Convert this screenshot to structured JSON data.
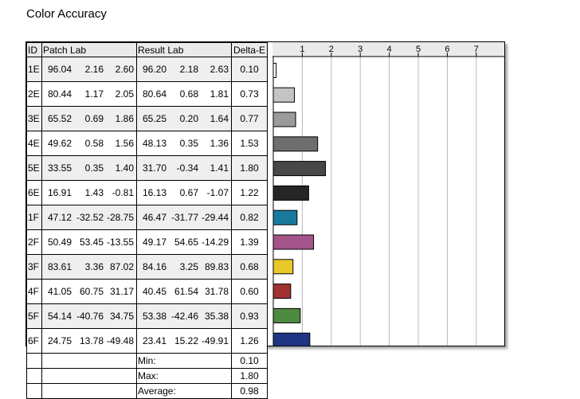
{
  "title": "Color Accuracy",
  "headers": {
    "id": "ID",
    "patch": "Patch Lab",
    "result": "Result Lab",
    "de": "Delta-E"
  },
  "rows": [
    {
      "id": "1E",
      "patch": [
        "96.04",
        "2.16",
        "2.60"
      ],
      "result": [
        "96.20",
        "2.18",
        "2.63"
      ],
      "de": "0.10",
      "color": "#ffffff"
    },
    {
      "id": "2E",
      "patch": [
        "80.44",
        "1.17",
        "2.05"
      ],
      "result": [
        "80.64",
        "0.68",
        "1.81"
      ],
      "de": "0.73",
      "color": "#c4c4c4"
    },
    {
      "id": "3E",
      "patch": [
        "65.52",
        "0.69",
        "1.86"
      ],
      "result": [
        "65.25",
        "0.20",
        "1.64"
      ],
      "de": "0.77",
      "color": "#9b9b9b"
    },
    {
      "id": "4E",
      "patch": [
        "49.62",
        "0.58",
        "1.56"
      ],
      "result": [
        "48.13",
        "0.35",
        "1.36"
      ],
      "de": "1.53",
      "color": "#6e6e6e"
    },
    {
      "id": "5E",
      "patch": [
        "33.55",
        "0.35",
        "1.40"
      ],
      "result": [
        "31.70",
        "-0.34",
        "1.41"
      ],
      "de": "1.80",
      "color": "#474747"
    },
    {
      "id": "6E",
      "patch": [
        "16.91",
        "1.43",
        "-0.81"
      ],
      "result": [
        "16.13",
        "0.67",
        "-1.07"
      ],
      "de": "1.22",
      "color": "#262626"
    },
    {
      "id": "1F",
      "patch": [
        "47.12",
        "-32.52",
        "-28.75"
      ],
      "result": [
        "46.47",
        "-31.77",
        "-29.44"
      ],
      "de": "0.82",
      "color": "#1a7a9e"
    },
    {
      "id": "2F",
      "patch": [
        "50.49",
        "53.45",
        "-13.55"
      ],
      "result": [
        "49.17",
        "54.65",
        "-14.29"
      ],
      "de": "1.39",
      "color": "#a5548a"
    },
    {
      "id": "3F",
      "patch": [
        "83.61",
        "3.36",
        "87.02"
      ],
      "result": [
        "84.16",
        "3.25",
        "89.83"
      ],
      "de": "0.68",
      "color": "#e8c82a"
    },
    {
      "id": "4F",
      "patch": [
        "41.05",
        "60.75",
        "31.17"
      ],
      "result": [
        "40.45",
        "61.54",
        "31.78"
      ],
      "de": "0.60",
      "color": "#a13232"
    },
    {
      "id": "5F",
      "patch": [
        "54.14",
        "-40.76",
        "34.75"
      ],
      "result": [
        "53.38",
        "-42.46",
        "35.38"
      ],
      "de": "0.93",
      "color": "#4f8a42"
    },
    {
      "id": "6F",
      "patch": [
        "24.75",
        "13.78",
        "-49.48"
      ],
      "result": [
        "23.41",
        "15.22",
        "-49.91"
      ],
      "de": "1.26",
      "color": "#1e3584"
    }
  ],
  "summary": [
    {
      "label": "Min:",
      "value": "0.10"
    },
    {
      "label": "Max:",
      "value": "1.80"
    },
    {
      "label": "Average:",
      "value": "0.98"
    }
  ],
  "chart_data": {
    "type": "bar",
    "orientation": "horizontal",
    "categories": [
      "1E",
      "2E",
      "3E",
      "4E",
      "5E",
      "6E",
      "1F",
      "2F",
      "3F",
      "4F",
      "5F",
      "6F"
    ],
    "values": [
      0.1,
      0.73,
      0.77,
      1.53,
      1.8,
      1.22,
      0.82,
      1.39,
      0.68,
      0.6,
      0.93,
      1.26
    ],
    "xticks": [
      "1",
      "2",
      "3",
      "4",
      "5",
      "6",
      "7"
    ],
    "xlim": [
      0,
      8
    ],
    "grid": true
  }
}
